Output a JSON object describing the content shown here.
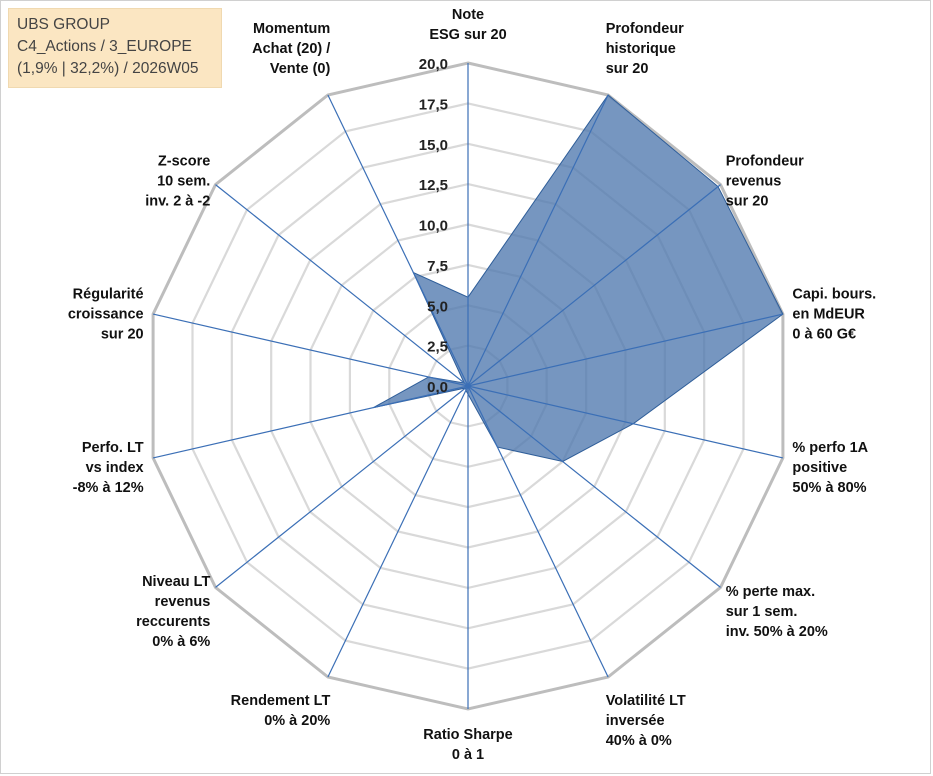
{
  "header": {
    "line1": "UBS GROUP",
    "line2": "C4_Actions / 3_EUROPE",
    "line3": "(1,9% | 32,2%) / 2026W05"
  },
  "chart_data": {
    "type": "radar",
    "title": "UBS GROUP",
    "r_range": [
      0,
      20
    ],
    "r_ticks": [
      "0,0",
      "2,5",
      "5,0",
      "7,5",
      "10,0",
      "12,5",
      "15,0",
      "17,5",
      "20,0"
    ],
    "grid": true,
    "series_color": "#4f79ae",
    "axes": [
      {
        "label": [
          "Note",
          "ESG sur 20"
        ],
        "value": 5.5
      },
      {
        "label": [
          "Profondeur",
          "historique",
          "sur 20"
        ],
        "value": 20.0
      },
      {
        "label": [
          "Profondeur",
          "revenus",
          "sur 20"
        ],
        "value": 19.8
      },
      {
        "label": [
          "Capi. bours.",
          "en MdEUR",
          "0 à 60 G€"
        ],
        "value": 20.0
      },
      {
        "label": [
          "% perfo 1A",
          "positive",
          "50% à 80%"
        ],
        "value": 10.5
      },
      {
        "label": [
          "% perte max.",
          "sur 1 sem.",
          "inv. 50% à 20%"
        ],
        "value": 7.5
      },
      {
        "label": [
          "Volatilité LT",
          "inversée",
          "40% à 0%"
        ],
        "value": 4.2
      },
      {
        "label": [
          "Ratio Sharpe",
          "0 à 1"
        ],
        "value": 0.5
      },
      {
        "label": [
          "Rendement LT",
          "0% à 20%"
        ],
        "value": 0.3
      },
      {
        "label": [
          "Niveau LT",
          "revenus",
          "reccurents",
          "0% à 6%"
        ],
        "value": 0.2
      },
      {
        "label": [
          "Perfo. LT",
          "vs index",
          "-8% à 12%"
        ],
        "value": 6.0
      },
      {
        "label": [
          "Régularité",
          "croissance",
          "sur 20"
        ],
        "value": 2.5
      },
      {
        "label": [
          "Z-score",
          "10 sem.",
          "inv. 2 à -2"
        ],
        "value": 0.3
      },
      {
        "label": [
          "Momentum",
          "Achat (20) /",
          "Vente (0)"
        ],
        "value": 7.8
      }
    ]
  }
}
